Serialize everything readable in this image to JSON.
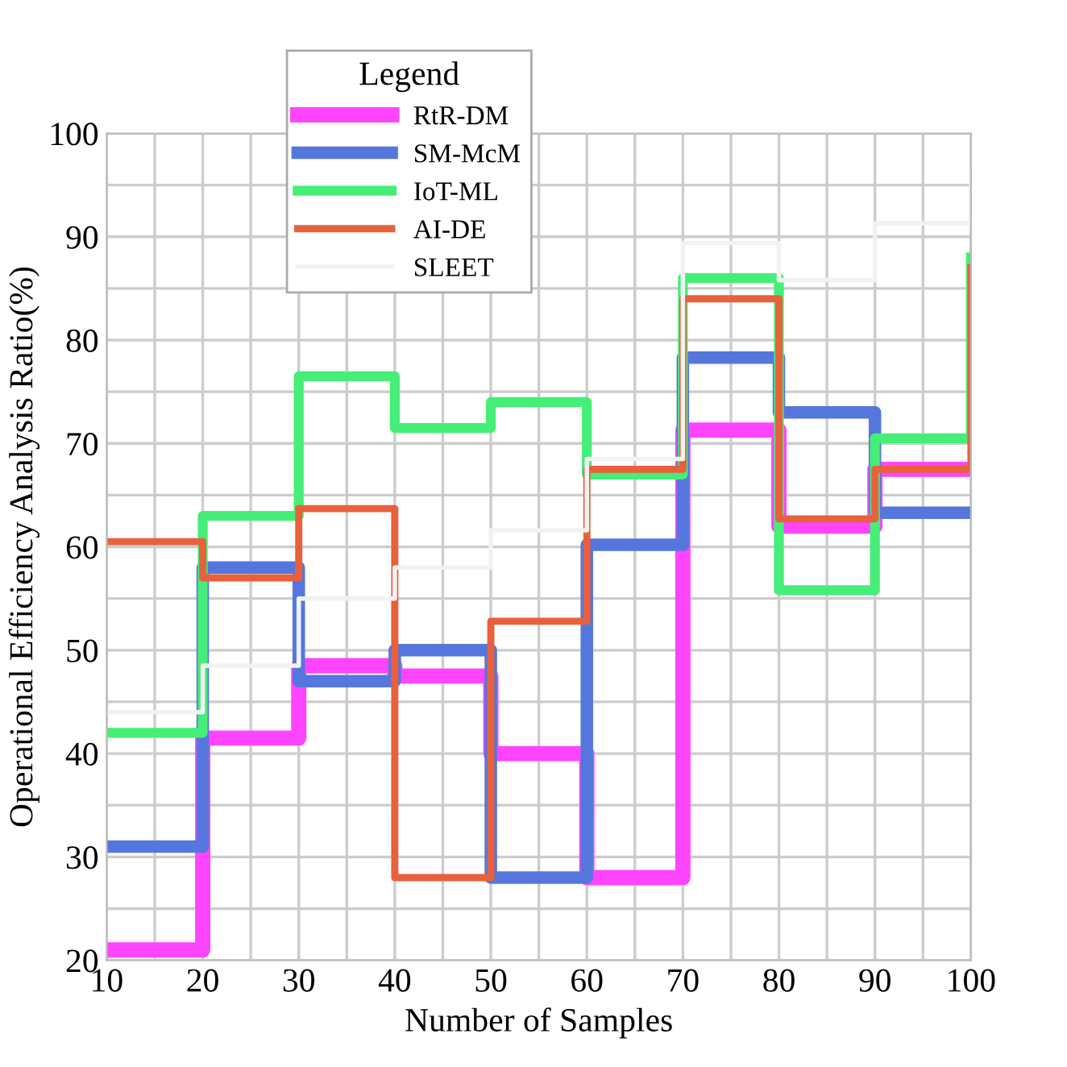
{
  "chart_data": {
    "type": "step",
    "xlabel": "Number of Samples",
    "ylabel": "Operational Efficiency Analysis Ratio(%)",
    "legend_title": "Legend",
    "legend": "top",
    "grid": true,
    "x": [
      10,
      20,
      30,
      40,
      50,
      60,
      70,
      80,
      90,
      100
    ],
    "xlim": [
      10,
      100
    ],
    "ylim": [
      20,
      100
    ],
    "xticks": [
      10,
      {
        "value": 15,
        "label": null
      },
      20,
      {
        "value": 25,
        "label": null
      },
      30,
      {
        "value": 35,
        "label": null
      },
      40,
      {
        "value": 45,
        "label": null
      },
      50,
      {
        "value": 55,
        "label": null
      },
      60,
      {
        "value": 65,
        "label": null
      },
      70,
      {
        "value": 75,
        "label": null
      },
      80,
      {
        "value": 85,
        "label": null
      },
      90,
      {
        "value": 95,
        "label": null
      },
      100
    ],
    "yticks": [
      20,
      {
        "value": 25,
        "label": null
      },
      30,
      {
        "value": 35,
        "label": null
      },
      40,
      {
        "value": 45,
        "label": null
      },
      50,
      {
        "value": 55,
        "label": null
      },
      60,
      {
        "value": 65,
        "label": null
      },
      70,
      {
        "value": 75,
        "label": null
      },
      80,
      {
        "value": 85,
        "label": null
      },
      90,
      {
        "value": 95,
        "label": null
      },
      100
    ],
    "series": [
      {
        "name": "RtR-DM",
        "color": "#ff44ff",
        "values": [
          21,
          41.5,
          48.5,
          47.5,
          40,
          28,
          71.3,
          62,
          67.5,
          67.5
        ]
      },
      {
        "name": "SM-McM",
        "color": "#5577dd",
        "values": [
          31,
          58,
          47,
          50,
          28,
          60.2,
          78.3,
          73,
          63.3,
          63.3
        ]
      },
      {
        "name": "IoT-ML",
        "color": "#44ee77",
        "values": [
          42,
          63,
          76.5,
          71.5,
          74,
          67,
          86,
          55.8,
          70.5,
          88
        ]
      },
      {
        "name": "AI-DE",
        "color": "#e8603c",
        "values": [
          60.5,
          57,
          63.7,
          28,
          52.8,
          67.5,
          84,
          62.7,
          67.5,
          87
        ]
      },
      {
        "name": "SLEET",
        "color": "#f2f2f2",
        "values": [
          44,
          48.5,
          55,
          58,
          61.6,
          68.5,
          89.4,
          85.8,
          91.3,
          96.5
        ]
      }
    ]
  }
}
